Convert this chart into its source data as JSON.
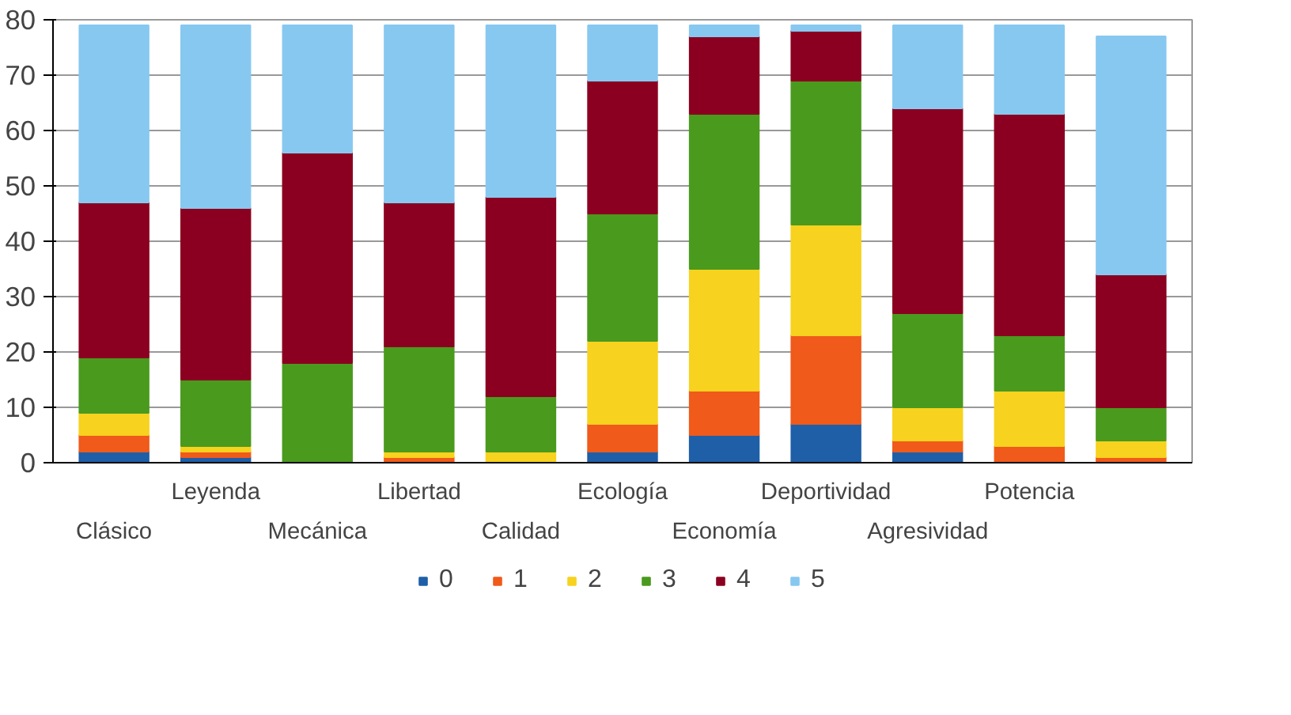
{
  "chart_data": {
    "type": "bar",
    "stacked": true,
    "categories": [
      "Clásico",
      "Leyenda",
      "Mecánica",
      "Libertad",
      "Calidad",
      "Ecología",
      "Economía",
      "Deportividad",
      "Agresividad",
      "Potencia",
      null
    ],
    "series": [
      {
        "name": "0",
        "color": "#1f5fa8",
        "values": [
          2,
          1,
          0,
          0,
          0,
          2,
          5,
          7,
          2,
          0,
          0
        ]
      },
      {
        "name": "1",
        "color": "#f05a1a",
        "values": [
          3,
          1,
          0,
          1,
          0,
          5,
          8,
          16,
          2,
          3,
          1
        ]
      },
      {
        "name": "2",
        "color": "#f7d21e",
        "values": [
          4,
          1,
          0,
          1,
          2,
          15,
          22,
          20,
          6,
          10,
          3
        ]
      },
      {
        "name": "3",
        "color": "#4a9a1e",
        "values": [
          10,
          12,
          18,
          19,
          10,
          23,
          28,
          26,
          17,
          10,
          6
        ]
      },
      {
        "name": "4",
        "color": "#8b0020",
        "values": [
          28,
          31,
          38,
          26,
          36,
          24,
          14,
          9,
          37,
          40,
          24
        ]
      },
      {
        "name": "5",
        "color": "#87c8f0",
        "values": [
          32,
          33,
          23,
          32,
          31,
          10,
          2,
          1,
          15,
          16,
          43
        ]
      }
    ],
    "ylim": [
      0,
      80
    ],
    "yticks": [
      0,
      10,
      20,
      30,
      40,
      50,
      60,
      70,
      80
    ],
    "grid": "y",
    "legend": "bottom"
  }
}
